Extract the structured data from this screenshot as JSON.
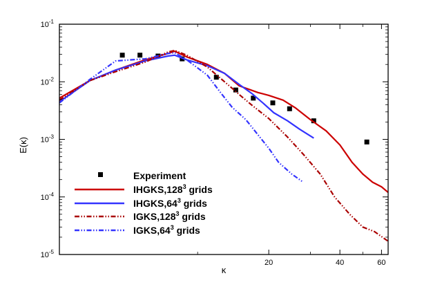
{
  "chart_data": {
    "type": "line",
    "title": "",
    "xlabel": "κ",
    "ylabel": "E(κ)",
    "xscale": "log",
    "yscale": "log",
    "xlim": [
      2.6,
      64
    ],
    "ylim": [
      1e-05,
      0.1
    ],
    "x_ticks": [
      {
        "value": 20,
        "label": "20"
      },
      {
        "value": 40,
        "label": "40"
      },
      {
        "value": 60,
        "label": "60"
      }
    ],
    "y_ticks": [
      {
        "value": 1e-05,
        "base": "10",
        "exp": "-5"
      },
      {
        "value": 0.0001,
        "base": "10",
        "exp": "-4"
      },
      {
        "value": 0.001,
        "base": "10",
        "exp": "-3"
      },
      {
        "value": 0.01,
        "base": "10",
        "exp": "-2"
      },
      {
        "value": 0.1,
        "base": "10",
        "exp": "-1"
      }
    ],
    "legend_position": "bottom-left",
    "series": [
      {
        "name": "Experiment",
        "legend": {
          "pre": "Experiment",
          "sup": "",
          "post": ""
        },
        "style": "markers",
        "color": "#000000",
        "x": [
          4.8,
          5.7,
          6.8,
          8.6,
          12.0,
          14.5,
          17.2,
          20.8,
          24.5,
          31.0,
          52.0
        ],
        "y": [
          0.029,
          0.029,
          0.028,
          0.025,
          0.012,
          0.0072,
          0.0052,
          0.0043,
          0.0034,
          0.0021,
          0.0009
        ]
      },
      {
        "name": "IHGKS,128³ grids",
        "legend": {
          "pre": "IHGKS,128",
          "sup": "3",
          "post": " grids"
        },
        "style": "solid",
        "color": "#cc0000",
        "x": [
          2.6,
          3.5,
          4.5,
          6.0,
          7.5,
          8.0,
          9.0,
          11.0,
          13.0,
          15.0,
          18.0,
          20.0,
          23.0,
          26.0,
          30.0,
          35.0,
          40.0,
          45.0,
          50.0,
          55.0,
          60.0,
          64.0
        ],
        "y": [
          0.0052,
          0.0105,
          0.016,
          0.024,
          0.031,
          0.034,
          0.027,
          0.02,
          0.014,
          0.0085,
          0.0065,
          0.0058,
          0.0048,
          0.0035,
          0.0022,
          0.0014,
          0.0008,
          0.0004,
          0.00025,
          0.00018,
          0.00015,
          0.00012
        ]
      },
      {
        "name": "IHGKS,64³ grids",
        "legend": {
          "pre": "IHGKS,64",
          "sup": "3",
          "post": " grids"
        },
        "style": "solid",
        "color": "#3333ff",
        "x": [
          2.6,
          3.5,
          4.5,
          6.0,
          7.5,
          8.0,
          9.0,
          11.0,
          13.0,
          15.0,
          17.0,
          19.0,
          21.0,
          24.0,
          27.0,
          31.0
        ],
        "y": [
          0.0045,
          0.0105,
          0.016,
          0.023,
          0.028,
          0.029,
          0.024,
          0.019,
          0.014,
          0.009,
          0.0062,
          0.0042,
          0.0029,
          0.0021,
          0.0015,
          0.00105
        ]
      },
      {
        "name": "IGKS,128³ grids",
        "legend": {
          "pre": "IGKS,128",
          "sup": "3",
          "post": " grids"
        },
        "style": "dashdotdot",
        "color": "#aa0000",
        "x": [
          2.6,
          3.5,
          4.5,
          6.0,
          7.5,
          8.0,
          9.0,
          11.0,
          13.0,
          14.0,
          15.0,
          17.0,
          20.0,
          24.0,
          28.0,
          33.0,
          38.0,
          44.0,
          50.0,
          56.0,
          64.0
        ],
        "y": [
          0.0048,
          0.0105,
          0.015,
          0.022,
          0.033,
          0.035,
          0.029,
          0.018,
          0.01,
          0.0077,
          0.006,
          0.0039,
          0.0023,
          0.0011,
          0.00055,
          0.00025,
          0.0001,
          5e-05,
          3e-05,
          2.5e-05,
          1.7e-05
        ]
      },
      {
        "name": "IGKS,64³ grids",
        "legend": {
          "pre": "IGKS,64",
          "sup": "3",
          "post": " grids"
        },
        "style": "dashdotdot",
        "color": "#3333ff",
        "x": [
          2.6,
          3.5,
          4.5,
          6.0,
          7.5,
          8.0,
          9.0,
          11.0,
          12.5,
          14.0,
          16.0,
          18.0,
          20.0,
          22.0,
          25.0,
          28.0
        ],
        "y": [
          0.0043,
          0.011,
          0.023,
          0.025,
          0.031,
          0.032,
          0.024,
          0.013,
          0.0065,
          0.0036,
          0.0022,
          0.0012,
          0.0007,
          0.0004,
          0.00025,
          0.00018
        ]
      }
    ]
  }
}
